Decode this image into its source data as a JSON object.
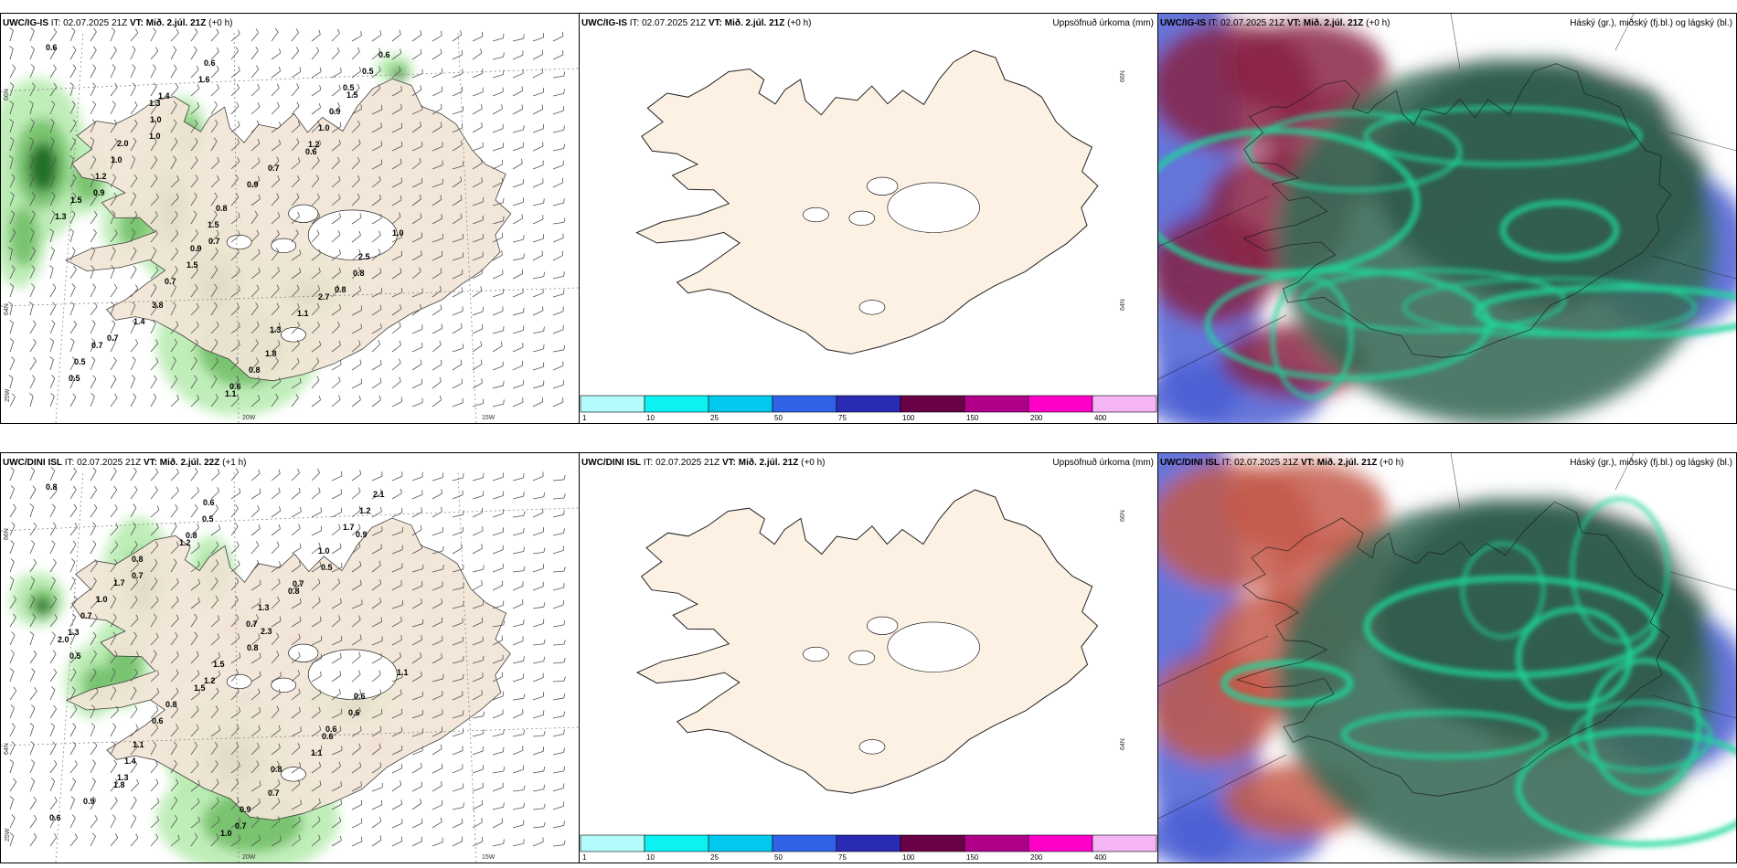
{
  "precip_colorbar": {
    "colors": [
      "#b4fbfb",
      "#0cf2f2",
      "#00c8ee",
      "#2f62e6",
      "#2a2bb5",
      "#6a0046",
      "#b0008a",
      "#ff00c8",
      "#f5b4f5"
    ],
    "ticks": [
      "1",
      "10",
      "25",
      "50",
      "75",
      "100",
      "150",
      "200",
      "400"
    ]
  },
  "rows": [
    {
      "left": {
        "model": "UWC/IG-IS",
        "it_label": "IT:",
        "it_value": "02.07.2025 21Z",
        "vt_label": "VT:",
        "vt_value": "Mið. 2.júl. 21Z",
        "lead": "(+0 h)"
      },
      "middle": {
        "model": "UWC/IG-IS",
        "it_label": "IT:",
        "it_value": "02.07.2025 21Z",
        "vt_label": "VT:",
        "vt_value": "Mið. 2.júl. 21Z",
        "lead": "(+0 h)",
        "title": "Uppsöfnuð úrkoma (mm)"
      },
      "right": {
        "model": "UWC/IG-IS",
        "it_label": "IT:",
        "it_value": "02.07.2025 21Z",
        "vt_label": "VT:",
        "vt_value": "Mið. 2.júl. 21Z",
        "lead": "(+0 h)",
        "title": "Háský (gr.), miðský (fj.bl.) og lágský (bl.)"
      },
      "lat_labels": [
        "66N",
        "64N",
        "25W",
        "20W",
        "15W"
      ],
      "lat_labels_mid": [
        "66N",
        "64N"
      ],
      "precip_labels": [
        "0.6",
        "1.4",
        "1.2",
        "0.9",
        "0.7",
        "0.8",
        "0.7",
        "0.6",
        "0.5",
        "1.0",
        "0.9",
        "1.0",
        "0.7",
        "1.3",
        "0.5",
        "1.6",
        "1.0",
        "1.2",
        "1.5",
        "0.8",
        "1.4",
        "0.8",
        "0.5",
        "1.0",
        "0.7",
        "1.3",
        "1.5",
        "1.1",
        "0.5",
        "0.6",
        "0.9",
        "1.0",
        "0.8",
        "2.5",
        "3.8",
        "1.8",
        "0.6",
        "1.3",
        "0.6",
        "1.5",
        "0.9",
        "2.7",
        "0.7",
        "1.1",
        "1.5",
        "2.0"
      ]
    },
    {
      "left": {
        "model": "UWC/DINI ISL",
        "it_label": "IT:",
        "it_value": "02.07.2025 21Z",
        "vt_label": "VT:",
        "vt_value": "Mið. 2.júl. 22Z",
        "lead": "(+1 h)"
      },
      "middle": {
        "model": "UWC/DINI ISL",
        "it_label": "IT:",
        "it_value": "02.07.2025 21Z",
        "vt_label": "VT:",
        "vt_value": "Mið. 2.júl. 21Z",
        "lead": "(+0 h)",
        "title": "Uppsöfnuð úrkoma (mm)"
      },
      "right": {
        "model": "UWC/DINI ISL",
        "it_label": "IT:",
        "it_value": "02.07.2025 21Z",
        "vt_label": "VT:",
        "vt_value": "Mið. 2.júl. 21Z",
        "lead": "(+0 h)",
        "title": "Háský (gr.), miðský (fj.bl.) og lágský (bl.)"
      },
      "lat_labels": [
        "66N",
        "64N",
        "25W",
        "20W",
        "15W"
      ],
      "lat_labels_mid": [
        "66N",
        "64N"
      ],
      "precip_labels": [
        "0.8",
        "0.8",
        "0.7",
        "1.3",
        "1.2",
        "0.6",
        "1.3",
        "0.7",
        "1.7",
        "0.7",
        "0.7",
        "1.1",
        "0.6",
        "0.8",
        "0.6",
        "0.5",
        "0.5",
        "0.7",
        "1.5",
        "0.6",
        "1.4",
        "0.9",
        "1.2",
        "0.8",
        "1.3",
        "0.5",
        "0.8",
        "1.1",
        "0.9",
        "0.6",
        "1.0",
        "1.0",
        "0.8",
        "0.6",
        "1.1",
        "0.7",
        "2.1",
        "1.2",
        "0.8",
        "2.0",
        "1.5",
        "0.6",
        "1.8",
        "1.0",
        "0.9",
        "1.7",
        "2.3"
      ]
    }
  ]
}
